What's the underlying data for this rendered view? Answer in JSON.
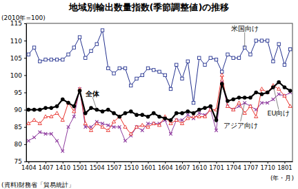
{
  "chart_data": {
    "type": "line",
    "title": "地域別輸出数量指数(季節調整値)の推移",
    "y_label": "(2010年=100)",
    "x_label": "(年・月)",
    "source": "(資料)財務省「貿易統計」",
    "categories": [
      "1404",
      null,
      null,
      "1407",
      null,
      null,
      "1410",
      null,
      null,
      "1501",
      null,
      null,
      "1504",
      null,
      null,
      "1507",
      null,
      null,
      "1510",
      null,
      null,
      "1601",
      null,
      null,
      "1604",
      null,
      null,
      "1607",
      null,
      null,
      "1610",
      null,
      null,
      "1701",
      null,
      null,
      "1704",
      null,
      null,
      "1707",
      null,
      null,
      "1710",
      null,
      null,
      "1801",
      null
    ],
    "ylim": [
      75,
      115
    ],
    "yticks": [
      75,
      80,
      85,
      90,
      95,
      100,
      105,
      110,
      115
    ],
    "grid": false,
    "series": [
      {
        "name": "米国向け",
        "color": "#23318f",
        "marker": "square",
        "line_style": "solid",
        "values": [
          106,
          108,
          104,
          104.5,
          104.5,
          104.5,
          104.5,
          106,
          108,
          111,
          105,
          107,
          109,
          113,
          102,
          100.5,
          102,
          102,
          97,
          99,
          100,
          102,
          101.5,
          101,
          100,
          96,
          103,
          99,
          104,
          92,
          105,
          103,
          105,
          104.5,
          101,
          106,
          105,
          105,
          108,
          106,
          110,
          110,
          110,
          104,
          109,
          103,
          107.5
        ]
      },
      {
        "name": "アジア向け",
        "color": "#8e3a9e",
        "marker": "x",
        "line_style": "solid",
        "values": [
          81,
          82,
          83.5,
          83,
          83,
          81,
          78,
          85,
          88,
          96,
          85,
          85,
          86.5,
          86,
          85.5,
          85,
          85,
          81,
          82.5,
          85,
          84,
          86,
          86,
          86,
          87,
          83,
          87,
          87,
          88.5,
          87.5,
          89,
          88.5,
          90,
          84,
          98,
          91,
          90,
          91,
          92,
          91,
          90,
          92,
          92,
          93,
          94.5,
          94,
          95
        ]
      },
      {
        "name": "EU向け",
        "color": "#e8302a",
        "marker": "triangle",
        "line_style": "solid",
        "values": [
          86,
          87,
          86,
          88,
          88,
          89,
          87,
          92,
          89.5,
          96,
          86,
          84,
          86,
          85,
          84,
          86.5,
          88,
          85,
          83,
          85,
          85.5,
          85,
          86,
          85.5,
          88,
          86,
          87,
          86,
          87.5,
          88,
          88,
          88,
          90,
          90,
          100,
          91,
          90,
          92,
          89,
          91,
          88,
          96,
          95,
          97,
          96,
          94,
          91
        ]
      },
      {
        "name": "全体",
        "color": "#000000",
        "marker": "circle",
        "line_style": "solid",
        "values": [
          90,
          90,
          90,
          90.5,
          90.5,
          91,
          93,
          92,
          91,
          95.5,
          89,
          90.5,
          90,
          89.5,
          90,
          89,
          88,
          89,
          89.5,
          88.5,
          88.5,
          88,
          89,
          88,
          87.5,
          87,
          89,
          89,
          89.5,
          89,
          90,
          90.5,
          91,
          87,
          97.5,
          92.5,
          93,
          93.5,
          93.5,
          93.5,
          95,
          94.5,
          95,
          96.5,
          98,
          96.5,
          95.5
        ]
      }
    ]
  }
}
